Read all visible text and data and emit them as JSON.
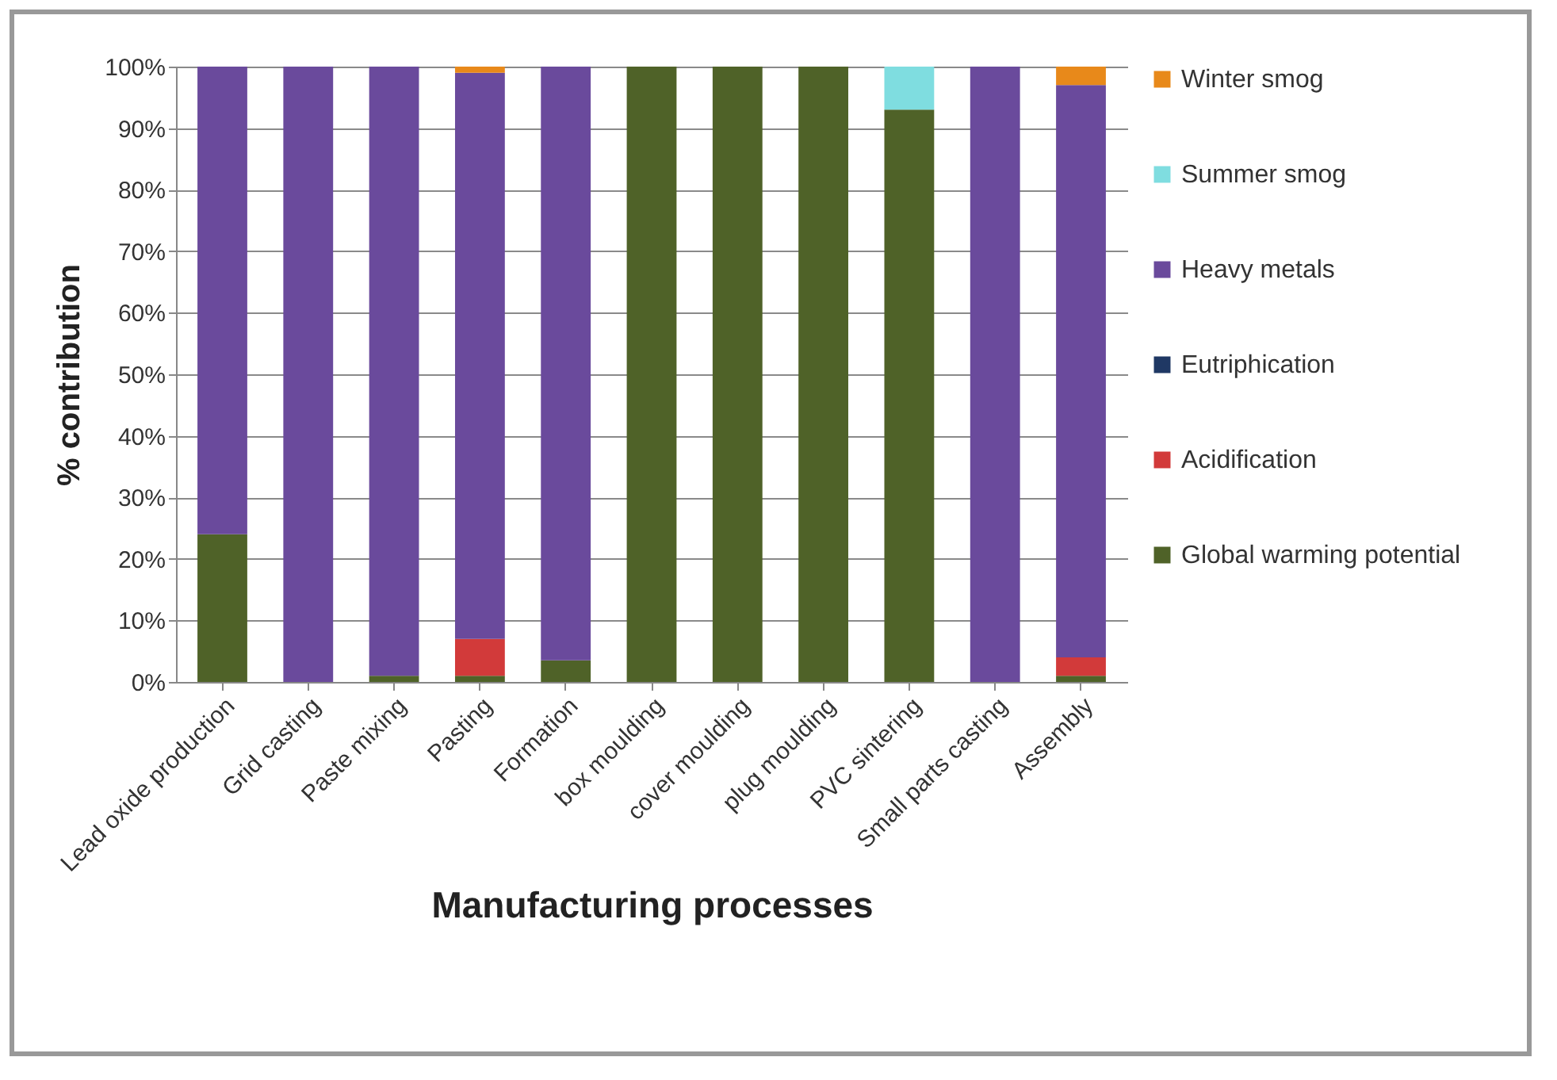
{
  "chart_data": {
    "type": "bar",
    "stacked": true,
    "xlabel": "Manufacturing processes",
    "ylabel": "% contribution",
    "categories": [
      "Lead oxide production",
      "Grid casting",
      "Paste mixing",
      "Pasting",
      "Formation",
      "box moulding",
      "cover moulding",
      "plug moulding",
      "PVC sintering",
      "Small parts casting",
      "Assembly"
    ],
    "series": [
      {
        "name": "Global warming potential",
        "color": "#4f6228",
        "values": [
          24,
          0,
          1,
          1,
          3.5,
          100,
          100,
          100,
          93,
          0,
          1
        ]
      },
      {
        "name": "Acidification",
        "color": "#d23a3a",
        "values": [
          0,
          0,
          0,
          6,
          0,
          0,
          0,
          0,
          0,
          0,
          3
        ]
      },
      {
        "name": "Eutriphication",
        "color": "#1f3864",
        "values": [
          0,
          0,
          0,
          0,
          0,
          0,
          0,
          0,
          0,
          0,
          0
        ]
      },
      {
        "name": "Heavy metals",
        "color": "#6a4a9c",
        "values": [
          76,
          100,
          99,
          92,
          96.5,
          0,
          0,
          0,
          0,
          100,
          93
        ]
      },
      {
        "name": "Summer smog",
        "color": "#7fdde0",
        "values": [
          0,
          0,
          0,
          0,
          0,
          0,
          0,
          0,
          7,
          0,
          0
        ]
      },
      {
        "name": "Winter smog",
        "color": "#e8891a",
        "values": [
          0,
          0,
          0,
          1,
          0,
          0,
          0,
          0,
          0,
          0,
          3
        ]
      }
    ],
    "ylim": [
      0,
      100
    ],
    "yticks": [
      {
        "value": 0,
        "label": "0%"
      },
      {
        "value": 10,
        "label": "10%"
      },
      {
        "value": 20,
        "label": "20%"
      },
      {
        "value": 30,
        "label": "30%"
      },
      {
        "value": 40,
        "label": "40%"
      },
      {
        "value": 50,
        "label": "50%"
      },
      {
        "value": 60,
        "label": "60%"
      },
      {
        "value": 70,
        "label": "70%"
      },
      {
        "value": 80,
        "label": "80%"
      },
      {
        "value": 90,
        "label": "90%"
      },
      {
        "value": 100,
        "label": "100%"
      }
    ],
    "grid": "y",
    "legend": "right"
  }
}
